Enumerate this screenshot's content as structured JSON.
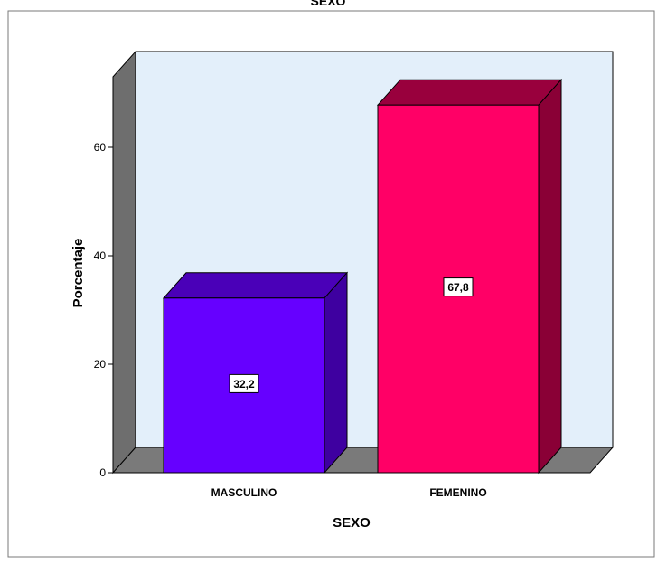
{
  "chart_data": {
    "type": "bar",
    "title": "SEXO",
    "xlabel": "SEXO",
    "ylabel": "Porcentaje",
    "categories": [
      "MASCULINO",
      "FEMENINO"
    ],
    "values": [
      32.2,
      67.8
    ],
    "value_labels": [
      "32,2",
      "67,8"
    ],
    "ylim": [
      0,
      73
    ],
    "yticks": [
      0,
      20,
      40,
      60
    ],
    "ytick_labels": [
      "0",
      "20",
      "40",
      "60"
    ],
    "grid": false,
    "legend": "none",
    "colors": {
      "bars": [
        "#6600FF",
        "#FF0066"
      ],
      "bar_tops": [
        "#4A00B8",
        "#99003D"
      ],
      "bar_sides": [
        "#3E00A0",
        "#8A0036"
      ],
      "back_wall": "#E3EFFA",
      "floor": "#7A7A7A",
      "side_wall": "#6E6E6E",
      "frame": "#7A7A7A"
    }
  }
}
